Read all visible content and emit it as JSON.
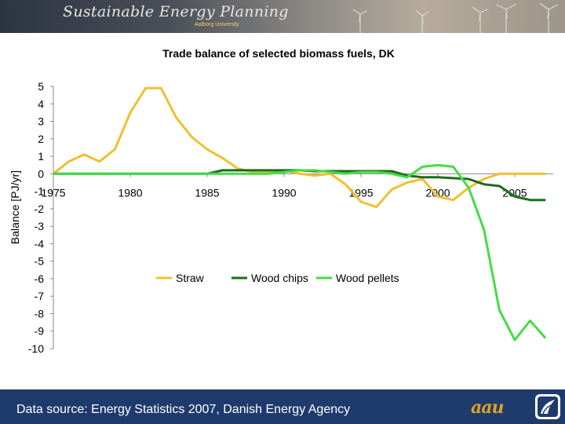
{
  "header": {
    "title": "Sustainable Energy Planning",
    "subtitle": "Aalborg University"
  },
  "footer": {
    "source": "Data source: Energy Statistics 2007, Danish Energy Agency",
    "logo_text": "aau"
  },
  "colors": {
    "footer_bg": "#1f3b6d",
    "straw": "#f0c030",
    "wood_chips": "#1e6b1e",
    "wood_pellets": "#44dd44"
  },
  "chart_data": {
    "type": "line",
    "title": "Trade balance of selected biomass fuels, DK",
    "xlabel": "",
    "ylabel": "Balance [PJ/yr]",
    "xlim": [
      1975,
      2007.5
    ],
    "ylim": [
      -10,
      5
    ],
    "x_ticks": [
      1975,
      1980,
      1985,
      1990,
      1995,
      2000,
      2005
    ],
    "y_ticks": [
      5,
      4,
      3,
      2,
      1,
      0,
      -1,
      -2,
      -3,
      -4,
      -5,
      -6,
      -7,
      -8,
      -9,
      -10
    ],
    "grid": false,
    "legend_position": "inside-center",
    "x": [
      1975,
      1976,
      1977,
      1978,
      1979,
      1980,
      1981,
      1982,
      1983,
      1984,
      1985,
      1986,
      1987,
      1988,
      1989,
      1990,
      1991,
      1992,
      1993,
      1994,
      1995,
      1996,
      1997,
      1998,
      1999,
      2000,
      2001,
      2002,
      2003,
      2004,
      2005,
      2006,
      2007
    ],
    "series": [
      {
        "name": "Straw",
        "color": "#f0c030",
        "values": [
          0,
          0.7,
          1.1,
          0.7,
          1.4,
          3.5,
          4.9,
          4.9,
          3.2,
          2.1,
          1.4,
          0.9,
          0.3,
          0.1,
          0.1,
          0.2,
          0,
          -0.1,
          0,
          -0.6,
          -1.6,
          -1.9,
          -0.9,
          -0.5,
          -0.3,
          -1.3,
          -1.5,
          -0.8,
          -0.3,
          0,
          0,
          0,
          0
        ]
      },
      {
        "name": "Wood chips",
        "color": "#1e6b1e",
        "values": [
          0,
          0,
          0,
          0,
          0,
          0,
          0,
          0,
          0,
          0,
          0,
          0.2,
          0.2,
          0.2,
          0.2,
          0.2,
          0.2,
          0.15,
          0.15,
          0.15,
          0.15,
          0.15,
          0.15,
          -0.1,
          -0.2,
          -0.2,
          -0.25,
          -0.3,
          -0.6,
          -0.7,
          -1.3,
          -1.5,
          -1.5
        ]
      },
      {
        "name": "Wood pellets",
        "color": "#44dd44",
        "values": [
          0,
          0,
          0,
          0,
          0,
          0,
          0,
          0,
          0,
          0,
          0,
          0,
          0,
          0,
          0,
          0.1,
          0.2,
          0.2,
          0.1,
          0,
          0.1,
          0.1,
          0,
          -0.2,
          0.4,
          0.5,
          0.4,
          -0.8,
          -3.2,
          -7.8,
          -9.5,
          -8.4,
          -9.4
        ]
      }
    ]
  }
}
